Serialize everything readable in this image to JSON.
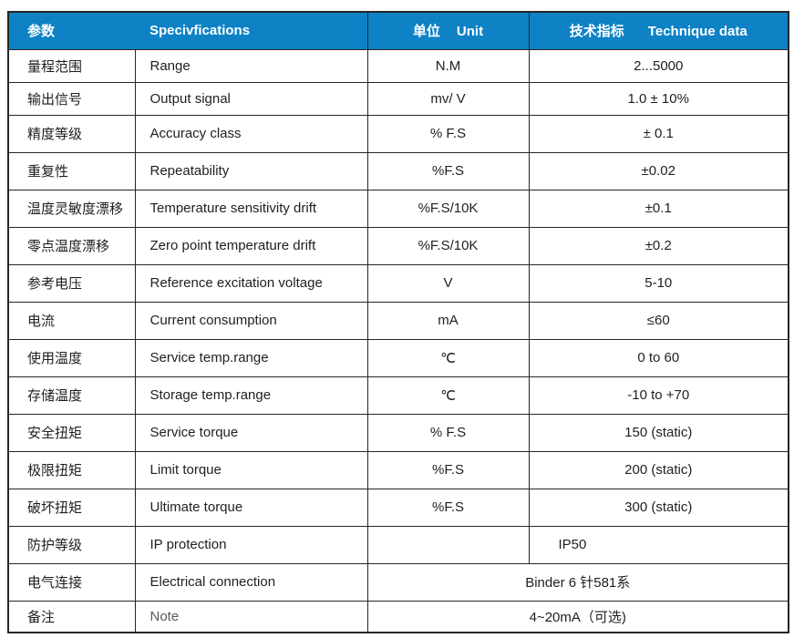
{
  "colors": {
    "header_bg": "#0e82c5",
    "header_text": "#ffffff",
    "border": "#262626",
    "body_text": "#1f1f1f",
    "note_text": "#595959"
  },
  "header": {
    "param": "参数",
    "spec": "Specivfications",
    "unit_cn": "单位",
    "unit_en": "Unit",
    "tech_cn": "技术指标",
    "tech_en": "Technique data"
  },
  "rows": [
    {
      "param": "量程范围",
      "spec": "Range",
      "unit": "N.M",
      "value": "2...5000"
    },
    {
      "param": "输出信号",
      "spec": "Output signal",
      "unit": "mv/ V",
      "value": "1.0 ± 10%"
    },
    {
      "param": "精度等级",
      "spec": "Accuracy class",
      "unit": "% F.S",
      "value": "± 0.1"
    },
    {
      "param": "重复性",
      "spec": "Repeatability",
      "unit": "%F.S",
      "value": "±0.02"
    },
    {
      "param": "温度灵敏度漂移",
      "spec": "Temperature sensitivity drift",
      "unit": "%F.S/10K",
      "value": "±0.1"
    },
    {
      "param": "零点温度漂移",
      "spec": "Zero point temperature drift",
      "unit": "%F.S/10K",
      "value": "±0.2"
    },
    {
      "param": "参考电压",
      "spec": "Reference excitation voltage",
      "unit": "V",
      "value": "5-10"
    },
    {
      "param": "电流",
      "spec": "Current consumption",
      "unit": "mA",
      "value": "≤60"
    },
    {
      "param": "使用温度",
      "spec": "Service temp.range",
      "unit": "℃",
      "value": "0 to 60"
    },
    {
      "param": "存储温度",
      "spec": "Storage temp.range",
      "unit": "℃",
      "value": "-10 to +70"
    },
    {
      "param": "安全扭矩",
      "spec": "Service torque",
      "unit": "% F.S",
      "value": "150 (static)"
    },
    {
      "param": "极限扭矩",
      "spec": "Limit torque",
      "unit": "%F.S",
      "value": "200 (static)"
    },
    {
      "param": "破坏扭矩",
      "spec": "Ultimate torque",
      "unit": "%F.S",
      "value": "300 (static)"
    },
    {
      "param": "防护等级",
      "spec": "IP protection",
      "unit": "",
      "value": "IP50"
    },
    {
      "param": "电气连接",
      "spec": "Electrical connection",
      "merged_value": "Binder 6 针581系"
    },
    {
      "param": "备注",
      "spec": "Note",
      "merged_value": "4~20mA（可选)"
    }
  ]
}
